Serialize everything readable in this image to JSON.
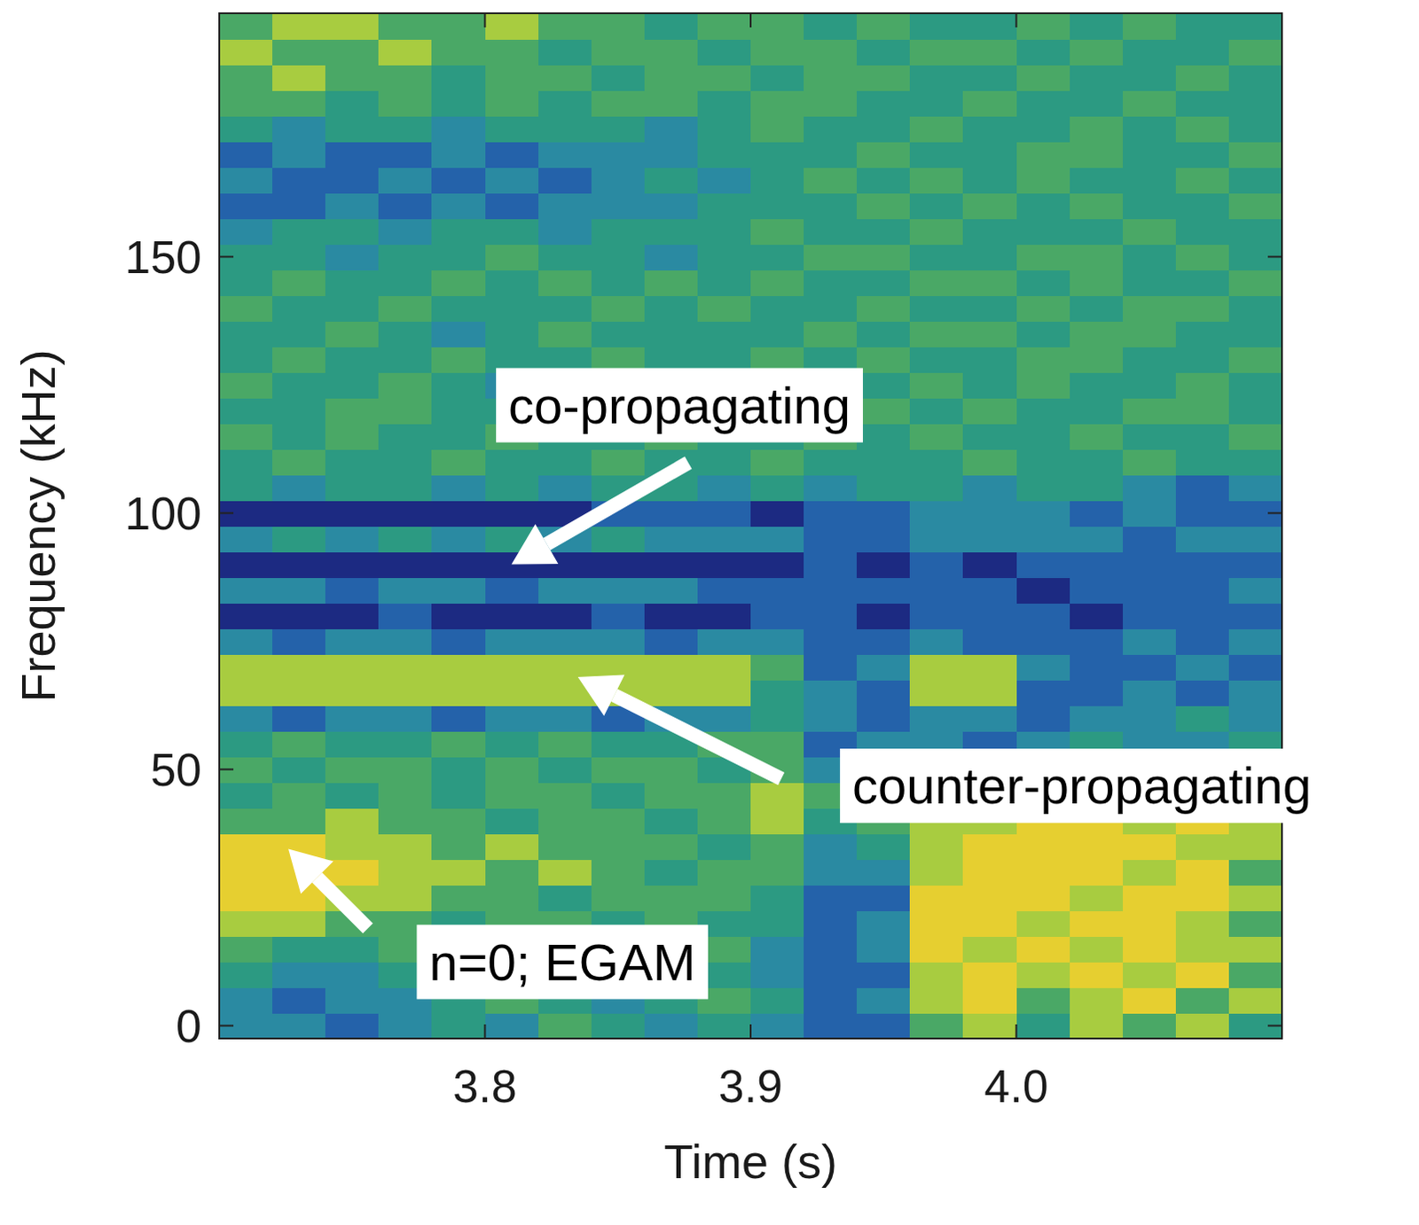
{
  "chart_data": {
    "type": "heatmap",
    "x_label": "Time (s)",
    "y_label": "Frequency (kHz)",
    "x": [
      3.71,
      3.73,
      3.75,
      3.77,
      3.79,
      3.81,
      3.83,
      3.85,
      3.87,
      3.89,
      3.91,
      3.93,
      3.95,
      3.97,
      3.99,
      4.01,
      4.03,
      4.05,
      4.07,
      4.09
    ],
    "y": [
      0,
      5,
      10,
      15,
      20,
      25,
      30,
      35,
      40,
      45,
      50,
      55,
      60,
      65,
      70,
      75,
      80,
      85,
      90,
      95,
      100,
      105,
      110,
      115,
      120,
      125,
      130,
      135,
      140,
      145,
      150,
      155,
      160,
      165,
      170,
      175,
      180,
      185,
      190,
      195
    ],
    "cells": [
      [
        3,
        3,
        2,
        3,
        4,
        3,
        5,
        4,
        3,
        4,
        3,
        2,
        2,
        5,
        6,
        4,
        6,
        5,
        6,
        4
      ],
      [
        3,
        2,
        3,
        3,
        4,
        5,
        4,
        3,
        4,
        5,
        4,
        2,
        3,
        6,
        7,
        5,
        6,
        7,
        5,
        6
      ],
      [
        4,
        3,
        3,
        4,
        5,
        4,
        5,
        4,
        5,
        4,
        3,
        2,
        2,
        6,
        7,
        6,
        7,
        6,
        7,
        5
      ],
      [
        5,
        4,
        4,
        5,
        4,
        5,
        4,
        5,
        4,
        5,
        3,
        2,
        3,
        7,
        6,
        7,
        6,
        7,
        6,
        6
      ],
      [
        6,
        6,
        5,
        5,
        4,
        5,
        5,
        4,
        5,
        4,
        4,
        2,
        3,
        7,
        7,
        6,
        7,
        7,
        6,
        5
      ],
      [
        7,
        7,
        6,
        6,
        5,
        5,
        4,
        5,
        5,
        5,
        4,
        2,
        2,
        7,
        7,
        7,
        6,
        7,
        7,
        6
      ],
      [
        7,
        7,
        7,
        6,
        6,
        5,
        6,
        5,
        4,
        5,
        5,
        3,
        3,
        6,
        7,
        7,
        7,
        6,
        7,
        5
      ],
      [
        7,
        7,
        6,
        6,
        5,
        6,
        5,
        5,
        5,
        4,
        5,
        3,
        4,
        6,
        7,
        7,
        7,
        7,
        6,
        6
      ],
      [
        5,
        5,
        6,
        5,
        5,
        4,
        5,
        5,
        4,
        5,
        6,
        4,
        5,
        6,
        6,
        7,
        7,
        6,
        7,
        6
      ],
      [
        4,
        5,
        4,
        5,
        4,
        5,
        5,
        4,
        5,
        5,
        6,
        5,
        5,
        5,
        6,
        6,
        6,
        6,
        5,
        5
      ],
      [
        5,
        4,
        5,
        5,
        4,
        5,
        4,
        5,
        5,
        4,
        5,
        3,
        4,
        3,
        4,
        4,
        5,
        4,
        4,
        4
      ],
      [
        4,
        5,
        4,
        4,
        5,
        4,
        5,
        4,
        4,
        5,
        5,
        2,
        3,
        3,
        2,
        3,
        4,
        3,
        3,
        4
      ],
      [
        3,
        2,
        3,
        3,
        2,
        3,
        3,
        2,
        3,
        3,
        4,
        3,
        2,
        3,
        3,
        2,
        3,
        3,
        4,
        3
      ],
      [
        6,
        6,
        6,
        6,
        6,
        6,
        6,
        6,
        6,
        6,
        4,
        3,
        2,
        6,
        6,
        2,
        2,
        3,
        2,
        3
      ],
      [
        6,
        6,
        6,
        6,
        6,
        6,
        6,
        6,
        6,
        6,
        5,
        2,
        3,
        6,
        6,
        3,
        2,
        2,
        3,
        2
      ],
      [
        3,
        2,
        3,
        3,
        2,
        3,
        3,
        3,
        2,
        3,
        3,
        2,
        2,
        3,
        2,
        2,
        2,
        3,
        2,
        3
      ],
      [
        1,
        1,
        1,
        2,
        1,
        1,
        1,
        2,
        1,
        1,
        2,
        2,
        1,
        2,
        2,
        2,
        1,
        2,
        2,
        2
      ],
      [
        3,
        3,
        2,
        3,
        3,
        2,
        3,
        3,
        3,
        2,
        2,
        2,
        2,
        2,
        2,
        1,
        2,
        2,
        2,
        3
      ],
      [
        1,
        1,
        1,
        1,
        1,
        1,
        1,
        1,
        1,
        1,
        1,
        2,
        1,
        2,
        1,
        2,
        2,
        2,
        2,
        2
      ],
      [
        3,
        4,
        3,
        4,
        3,
        4,
        3,
        4,
        3,
        3,
        3,
        2,
        2,
        3,
        3,
        3,
        3,
        2,
        3,
        3
      ],
      [
        1,
        1,
        1,
        1,
        1,
        1,
        1,
        2,
        2,
        2,
        1,
        2,
        2,
        3,
        3,
        3,
        2,
        3,
        2,
        2
      ],
      [
        4,
        3,
        4,
        4,
        3,
        4,
        3,
        4,
        4,
        3,
        4,
        3,
        4,
        4,
        3,
        4,
        4,
        3,
        2,
        3
      ],
      [
        4,
        5,
        4,
        4,
        5,
        4,
        4,
        5,
        4,
        4,
        5,
        4,
        4,
        4,
        5,
        4,
        4,
        5,
        4,
        4
      ],
      [
        5,
        4,
        5,
        4,
        4,
        5,
        4,
        4,
        5,
        4,
        4,
        5,
        4,
        5,
        4,
        4,
        5,
        4,
        4,
        5
      ],
      [
        4,
        4,
        5,
        5,
        4,
        4,
        5,
        4,
        4,
        5,
        4,
        4,
        5,
        4,
        5,
        4,
        4,
        5,
        5,
        4
      ],
      [
        5,
        4,
        4,
        5,
        4,
        3,
        4,
        4,
        5,
        4,
        5,
        4,
        4,
        5,
        4,
        5,
        4,
        4,
        5,
        4
      ],
      [
        4,
        5,
        4,
        4,
        5,
        4,
        4,
        5,
        4,
        4,
        5,
        4,
        5,
        4,
        4,
        5,
        5,
        4,
        4,
        5
      ],
      [
        4,
        4,
        5,
        4,
        3,
        4,
        5,
        4,
        4,
        4,
        4,
        5,
        4,
        5,
        5,
        4,
        5,
        5,
        4,
        4
      ],
      [
        5,
        4,
        4,
        5,
        4,
        4,
        4,
        5,
        4,
        5,
        4,
        4,
        5,
        4,
        4,
        5,
        4,
        5,
        5,
        4
      ],
      [
        4,
        5,
        4,
        4,
        5,
        4,
        5,
        4,
        5,
        4,
        5,
        4,
        4,
        5,
        5,
        4,
        5,
        4,
        4,
        5
      ],
      [
        4,
        4,
        3,
        4,
        4,
        5,
        4,
        4,
        3,
        4,
        4,
        5,
        5,
        4,
        4,
        5,
        5,
        4,
        5,
        4
      ],
      [
        3,
        4,
        4,
        3,
        4,
        4,
        3,
        4,
        4,
        4,
        5,
        4,
        4,
        5,
        4,
        4,
        4,
        5,
        4,
        4
      ],
      [
        2,
        2,
        3,
        2,
        3,
        2,
        3,
        3,
        3,
        4,
        4,
        4,
        5,
        4,
        5,
        4,
        5,
        4,
        4,
        5
      ],
      [
        3,
        2,
        2,
        3,
        2,
        3,
        2,
        3,
        4,
        3,
        4,
        5,
        4,
        5,
        4,
        5,
        4,
        4,
        5,
        4
      ],
      [
        2,
        3,
        2,
        2,
        3,
        2,
        3,
        3,
        3,
        4,
        4,
        4,
        5,
        4,
        4,
        5,
        5,
        4,
        4,
        5
      ],
      [
        4,
        3,
        4,
        4,
        3,
        4,
        4,
        4,
        3,
        4,
        5,
        4,
        4,
        5,
        4,
        4,
        5,
        4,
        5,
        4
      ],
      [
        5,
        5,
        4,
        5,
        4,
        5,
        4,
        5,
        5,
        4,
        5,
        5,
        4,
        4,
        5,
        4,
        4,
        5,
        4,
        4
      ],
      [
        5,
        6,
        5,
        5,
        4,
        5,
        5,
        4,
        5,
        5,
        4,
        5,
        5,
        4,
        4,
        5,
        4,
        4,
        5,
        4
      ],
      [
        6,
        5,
        5,
        6,
        5,
        5,
        4,
        5,
        5,
        4,
        5,
        5,
        4,
        5,
        5,
        4,
        5,
        4,
        4,
        5
      ],
      [
        5,
        6,
        6,
        5,
        5,
        6,
        5,
        5,
        4,
        5,
        5,
        4,
        5,
        4,
        4,
        5,
        4,
        5,
        4,
        4
      ]
    ],
    "zlim": [
      0,
      9
    ],
    "xlim": [
      3.7,
      4.1
    ],
    "ylim": [
      -2.5,
      197.5
    ],
    "xticks": [
      3.8,
      3.9,
      {
        "value": 4,
        "label": "4.0"
      }
    ],
    "yticks": [
      0,
      50,
      100,
      150
    ],
    "annotations": [
      {
        "text": "co-propagating",
        "x": 3.81,
        "y": 90
      },
      {
        "text": "counter-propagating",
        "x": 3.835,
        "y": 68
      },
      {
        "text": "n=0; EGAM",
        "x": 3.726,
        "y": 34.5
      }
    ]
  }
}
